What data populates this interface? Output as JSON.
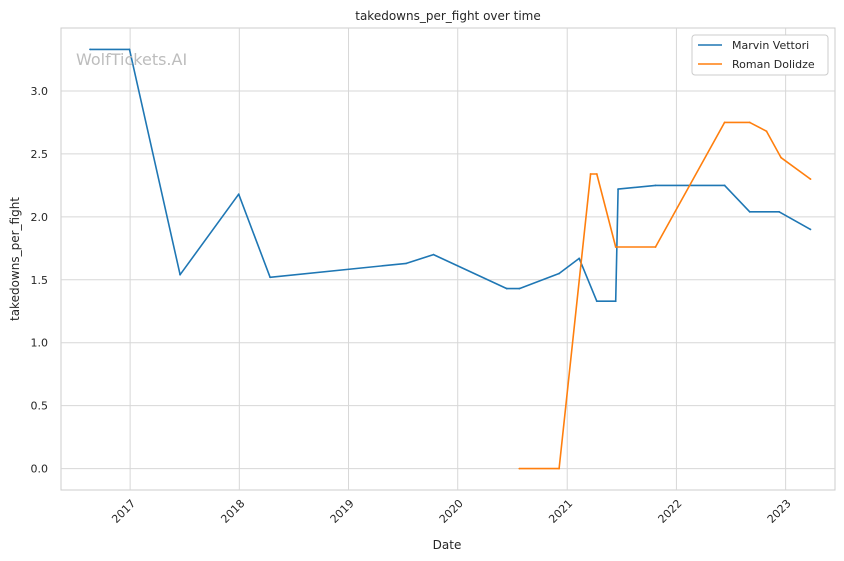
{
  "watermark": "WolfTickets.AI",
  "chart_data": {
    "type": "line",
    "title": "takedowns_per_fight over time",
    "xlabel": "Date",
    "ylabel": "takedowns_per_fight",
    "x_tick_labels": [
      "2017",
      "2018",
      "2019",
      "2020",
      "2021",
      "2022",
      "2023"
    ],
    "y_tick_labels": [
      "0.0",
      "0.5",
      "1.0",
      "1.5",
      "2.0",
      "2.5",
      "3.0"
    ],
    "xlim": [
      "2016-05-15",
      "2023-06-15"
    ],
    "ylim": [
      -0.17,
      3.5
    ],
    "grid": true,
    "legend_position": "top-right",
    "series": [
      {
        "name": "Marvin Vettori",
        "color": "#1f77b4",
        "points": [
          {
            "x": "2016-08-20",
            "y": 3.33
          },
          {
            "x": "2016-12-30",
            "y": 3.33
          },
          {
            "x": "2017-06-17",
            "y": 1.54
          },
          {
            "x": "2017-12-30",
            "y": 2.18
          },
          {
            "x": "2018-04-14",
            "y": 1.52
          },
          {
            "x": "2019-07-13",
            "y": 1.63
          },
          {
            "x": "2019-10-12",
            "y": 1.7
          },
          {
            "x": "2020-06-13",
            "y": 1.43
          },
          {
            "x": "2020-07-25",
            "y": 1.43
          },
          {
            "x": "2020-12-05",
            "y": 1.55
          },
          {
            "x": "2021-02-10",
            "y": 1.67
          },
          {
            "x": "2021-04-10",
            "y": 1.33
          },
          {
            "x": "2021-06-12",
            "y": 1.33
          },
          {
            "x": "2021-06-20",
            "y": 2.22
          },
          {
            "x": "2021-10-23",
            "y": 2.25
          },
          {
            "x": "2022-06-11",
            "y": 2.25
          },
          {
            "x": "2022-09-03",
            "y": 2.04
          },
          {
            "x": "2022-12-10",
            "y": 2.04
          },
          {
            "x": "2023-03-25",
            "y": 1.9
          }
        ]
      },
      {
        "name": "Roman Dolidze",
        "color": "#ff7f0e",
        "points": [
          {
            "x": "2020-07-25",
            "y": 0.0
          },
          {
            "x": "2020-12-05",
            "y": 0.0
          },
          {
            "x": "2021-03-20",
            "y": 2.34
          },
          {
            "x": "2021-04-10",
            "y": 2.34
          },
          {
            "x": "2021-06-12",
            "y": 1.76
          },
          {
            "x": "2021-10-23",
            "y": 1.76
          },
          {
            "x": "2022-06-11",
            "y": 2.75
          },
          {
            "x": "2022-09-03",
            "y": 2.75
          },
          {
            "x": "2022-10-29",
            "y": 2.68
          },
          {
            "x": "2022-12-17",
            "y": 2.47
          },
          {
            "x": "2023-03-25",
            "y": 2.3
          }
        ]
      }
    ]
  }
}
